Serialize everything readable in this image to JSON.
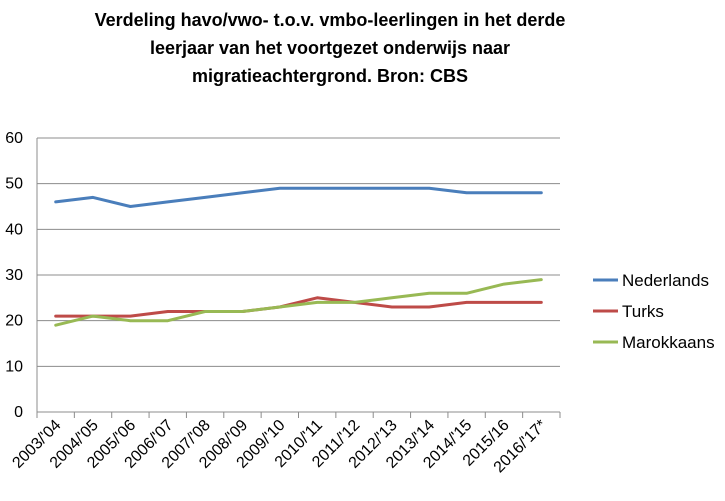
{
  "chart_data": {
    "type": "line",
    "title_lines": [
      "Verdeling havo/vwo- t.o.v. vmbo-leerlingen  in het derde",
      "leerjaar van het voortgezet onderwijs naar",
      "migratieachtergrond. Bron: CBS"
    ],
    "categories": [
      "2003/'04",
      "2004/'05",
      "2005/'06",
      "2006/'07",
      "2007/'08",
      "2008/'09",
      "2009/'10",
      "2010/'11",
      "2011/'12",
      "2012/'13",
      "2013/'14",
      "2014/'15",
      "2015/16",
      "2016/'17*"
    ],
    "ylim": [
      0,
      60
    ],
    "yticks": [
      "0",
      "10",
      "20",
      "30",
      "40",
      "50",
      "60"
    ],
    "grid": true,
    "legend_position": "right",
    "series": [
      {
        "name": "Nederlands",
        "color": "#4a7ebb",
        "values": [
          46,
          47,
          45,
          46,
          47,
          48,
          49,
          49,
          49,
          49,
          49,
          48,
          48,
          48
        ]
      },
      {
        "name": "Turks",
        "color": "#be4b48",
        "values": [
          21,
          21,
          21,
          22,
          22,
          22,
          23,
          25,
          24,
          23,
          23,
          24,
          24,
          24
        ]
      },
      {
        "name": "Marokkaans",
        "color": "#98b954",
        "values": [
          19,
          21,
          20,
          20,
          22,
          22,
          23,
          24,
          24,
          25,
          26,
          26,
          28,
          29
        ]
      }
    ]
  }
}
